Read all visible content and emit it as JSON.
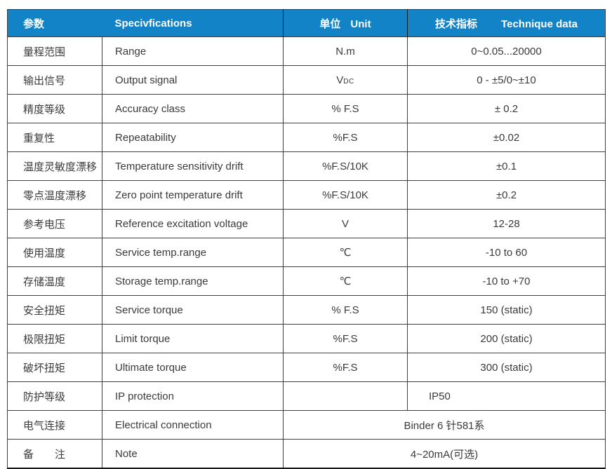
{
  "table": {
    "colors": {
      "header_bg": "#1283C6",
      "header_text": "#FFFFFF",
      "body_text": "#3A3A3A",
      "border": "#3F3F3F",
      "bottom_rule": "#141414"
    },
    "header": {
      "columns": [
        {
          "zh": "参数",
          "en": ""
        },
        {
          "zh": "",
          "en": "Specivfications"
        },
        {
          "zh": "单位",
          "en": "Unit"
        },
        {
          "zh": "技术指标",
          "en": "Technique data"
        }
      ]
    },
    "rows": [
      {
        "param": "量程范围",
        "spec": "Range",
        "unit": "N.m",
        "value": "0~0.05...20000"
      },
      {
        "param": "输出信号",
        "spec": "Output signal",
        "unit": "V",
        "unit_sub": "DC",
        "value": "0 - ±5/0~±10"
      },
      {
        "param": "精度等级",
        "spec": "Accuracy class",
        "unit": "% F.S",
        "value": "± 0.2"
      },
      {
        "param": "重复性",
        "spec": "Repeatability",
        "unit": "%F.S",
        "value": "±0.02"
      },
      {
        "param": "温度灵敏度漂移",
        "spec": "Temperature sensitivity drift",
        "unit": "%F.S/10K",
        "value": "±0.1"
      },
      {
        "param": "零点温度漂移",
        "spec": "Zero point temperature drift",
        "unit": "%F.S/10K",
        "value": "±0.2"
      },
      {
        "param": "参考电压",
        "spec": "Reference excitation voltage",
        "unit": "V",
        "value": "12-28"
      },
      {
        "param": "使用温度",
        "spec": "Service temp.range",
        "unit": "℃",
        "value": "-10 to 60"
      },
      {
        "param": "存储温度",
        "spec": "Storage temp.range",
        "unit": "℃",
        "value": "-10 to +70"
      },
      {
        "param": "安全扭矩",
        "spec": "Service torque",
        "unit": "% F.S",
        "value": "150 (static)"
      },
      {
        "param": "极限扭矩",
        "spec": "Limit torque",
        "unit": "%F.S",
        "value": "200 (static)"
      },
      {
        "param": "破坏扭矩",
        "spec": "Ultimate torque",
        "unit": "%F.S",
        "value": "300 (static)"
      },
      {
        "param": "防护等级",
        "spec": "IP protection",
        "unit": "",
        "value": "IP50",
        "value_align": "left"
      },
      {
        "param": "电气连接",
        "spec": "Electrical connection",
        "merged_value": "Binder 6 针581系"
      },
      {
        "param": "备　　注",
        "spec": "Note",
        "merged_value": "4~20mA(可选)"
      }
    ]
  }
}
